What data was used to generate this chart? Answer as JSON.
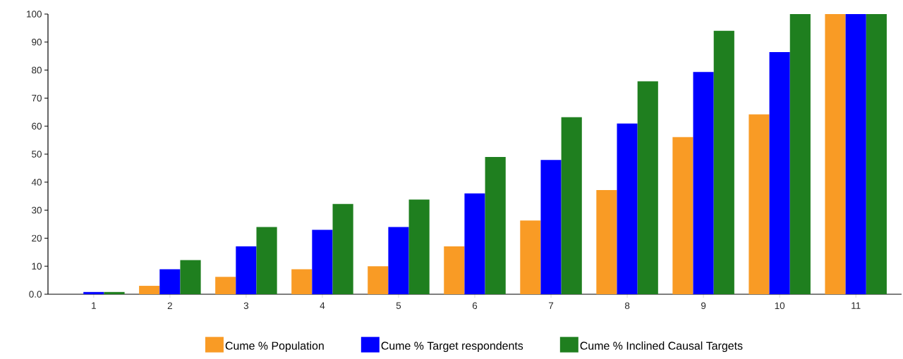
{
  "chart_data": {
    "type": "bar",
    "categories": [
      "1",
      "2",
      "3",
      "4",
      "5",
      "6",
      "7",
      "8",
      "9",
      "10",
      "11"
    ],
    "series": [
      {
        "name": "Cume % Population",
        "color": "#f99b25",
        "values": [
          0,
          3,
          6.2,
          8.9,
          10,
          17.1,
          26.3,
          37.2,
          56.1,
          64.2,
          100
        ]
      },
      {
        "name": "Cume % Target respondents",
        "color": "#0000ff",
        "values": [
          0.8,
          8.9,
          17.1,
          23,
          24,
          36,
          47.9,
          60.9,
          79.3,
          86.4,
          100
        ]
      },
      {
        "name": "Cume % Inclined Causal Targets",
        "color": "#1f7f1f",
        "values": [
          0.8,
          12.2,
          24,
          32.2,
          33.8,
          49,
          63.2,
          76,
          94,
          100,
          100
        ]
      }
    ],
    "ylim": [
      0,
      100
    ],
    "yticks": [
      {
        "value": 0,
        "label": "0.0"
      },
      10,
      20,
      30,
      40,
      50,
      60,
      70,
      80,
      90,
      100
    ],
    "legend": "bottom"
  }
}
